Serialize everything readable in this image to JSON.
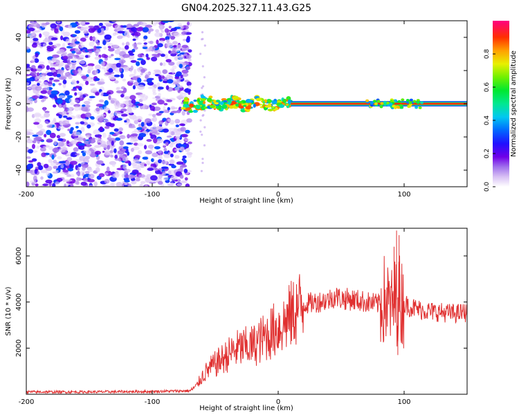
{
  "title": "GN04.2025.327.11.43.G25",
  "chart_data": [
    {
      "type": "heatmap",
      "name": "spectrogram",
      "xlabel": "Height of straight line (km)",
      "ylabel": "Frequency (Hz)",
      "xlim": [
        -200,
        150
      ],
      "ylim": [
        -50,
        50
      ],
      "xticks": [
        -200,
        -100,
        0,
        100
      ],
      "yticks": [
        -40,
        -20,
        0,
        20,
        40
      ],
      "description_regions": [
        {
          "x_range": [
            -200,
            -75
          ],
          "kind": "broadband noise",
          "amplitude_range": [
            0.0,
            0.3
          ]
        },
        {
          "x_range": [
            -75,
            10
          ],
          "kind": "signal emerging near 0 Hz",
          "freq_spread_hz": 4
        },
        {
          "x_range": [
            10,
            150
          ],
          "kind": "steady carrier at 0 Hz",
          "amplitude": 1.0
        }
      ],
      "colorbar": {
        "label": "Normalized spectral amplitude",
        "range": [
          0,
          1
        ],
        "ticks": [
          0.0,
          0.2,
          0.4,
          0.6,
          0.8
        ]
      }
    },
    {
      "type": "line",
      "name": "snr",
      "xlabel": "Height of straight line (km)",
      "ylabel": "SNR (10 * v/v)",
      "xlim": [
        -200,
        150
      ],
      "ylim": [
        0,
        7200
      ],
      "xticks": [
        -200,
        -100,
        0,
        100
      ],
      "yticks": [
        2000,
        4000,
        6000
      ],
      "color": "#e03030",
      "series": [
        {
          "name": "SNR",
          "x": [
            -200,
            -150,
            -100,
            -70,
            -65,
            -60,
            -55,
            -50,
            -45,
            -40,
            -35,
            -30,
            -25,
            -20,
            -15,
            -10,
            -5,
            0,
            5,
            10,
            15,
            20,
            30,
            40,
            45,
            50,
            60,
            70,
            80,
            85,
            90,
            95,
            100,
            110,
            120,
            130,
            140,
            150
          ],
          "y": [
            100,
            100,
            120,
            150,
            350,
            800,
            1100,
            1300,
            1500,
            1700,
            1900,
            2000,
            2050,
            2100,
            2300,
            2500,
            2700,
            2900,
            3100,
            3400,
            3700,
            3900,
            4000,
            4100,
            4250,
            4150,
            4100,
            4000,
            3900,
            4100,
            3700,
            4200,
            3900,
            3700,
            3600,
            3550,
            3500,
            3550
          ]
        }
      ]
    }
  ]
}
